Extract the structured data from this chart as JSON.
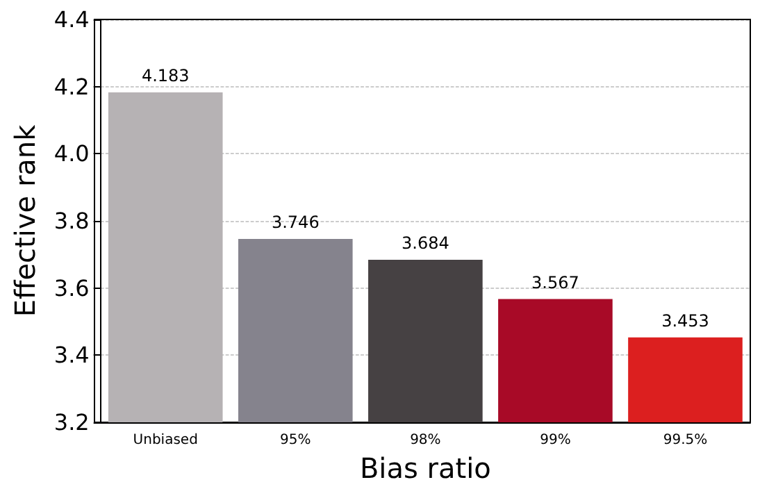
{
  "chart_data": {
    "type": "bar",
    "xlabel": "Bias ratio",
    "ylabel": "Effective rank",
    "categories": [
      "Unbiased",
      "95%",
      "98%",
      "99%",
      "99.5%"
    ],
    "values": [
      4.183,
      3.746,
      3.684,
      3.567,
      3.453
    ],
    "colors": [
      "#b6b2b4",
      "#85838d",
      "#464143",
      "#a80a27",
      "#dc1f1f"
    ],
    "ylim": [
      3.2,
      4.4
    ],
    "yticks": [
      3.2,
      3.4,
      3.6,
      3.8,
      {
        "value": 4,
        "label": "4.0"
      },
      4.2,
      4.4
    ],
    "grid": "y",
    "data_labels": true
  }
}
